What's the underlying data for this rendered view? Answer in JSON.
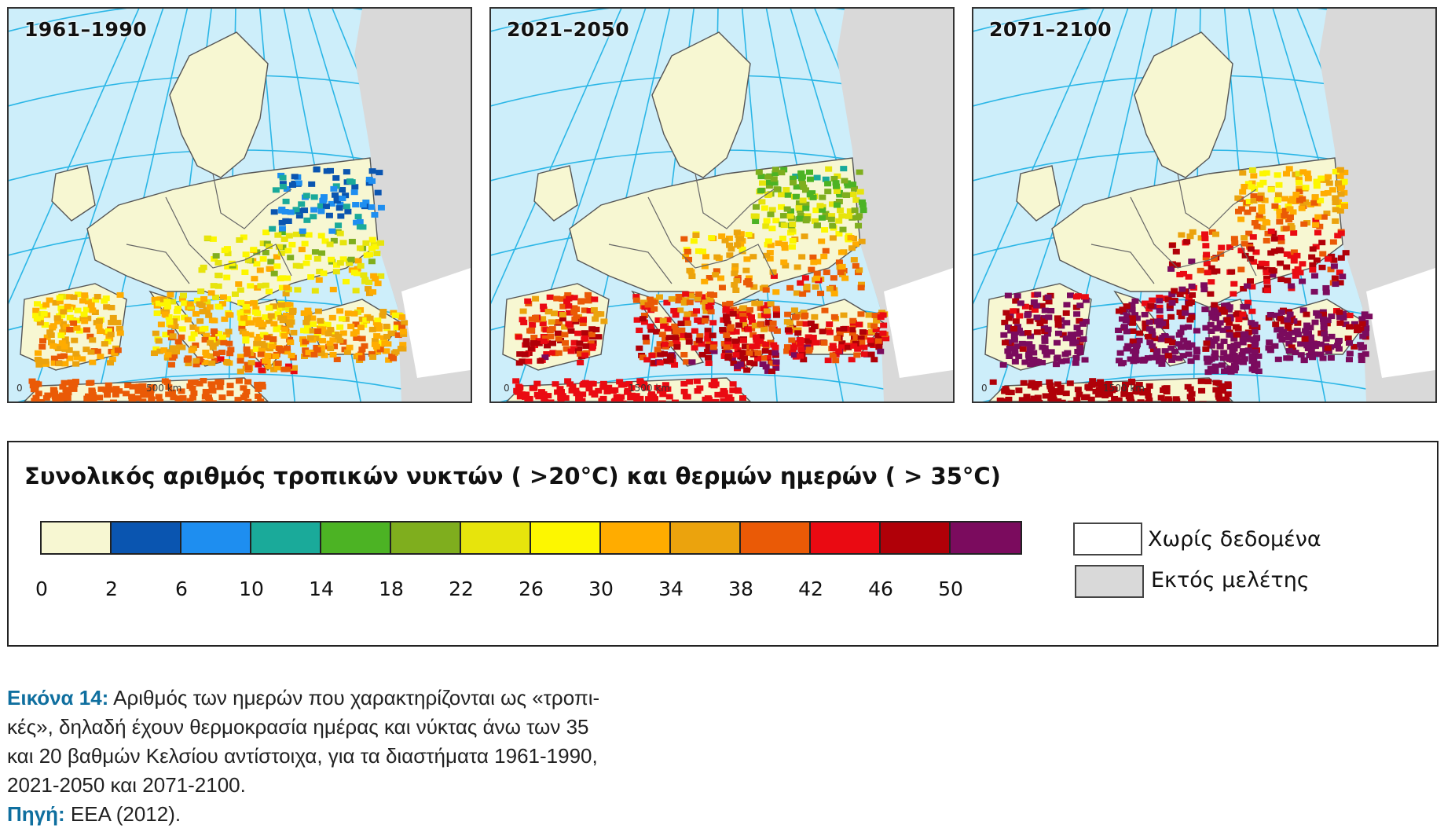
{
  "panels": [
    {
      "title": "1961–1990",
      "scale_start": "0",
      "scale_end": "500 km",
      "level": 1
    },
    {
      "title": "2021–2050",
      "scale_start": "0",
      "scale_end": "1500 km",
      "level": 2
    },
    {
      "title": "2071–2100",
      "scale_start": "0",
      "scale_end": "1500 km",
      "level": 3
    }
  ],
  "legend": {
    "title": "Συνολικός αριθμός τροπικών νυκτών ( >20°C) και θερμών ημερών ( > 35°C)",
    "colors": [
      "#f7f7d2",
      "#0a55b0",
      "#1e8ef0",
      "#1aaa9a",
      "#4cb324",
      "#7fae1e",
      "#e7e40c",
      "#fdf700",
      "#ffac00",
      "#eba30d",
      "#ea5a06",
      "#ea0a12",
      "#b00008",
      "#7b0b5e"
    ],
    "ticks": [
      "0",
      "2",
      "6",
      "10",
      "14",
      "18",
      "22",
      "26",
      "30",
      "34",
      "38",
      "42",
      "46",
      "50"
    ],
    "no_data": {
      "label": "Χωρίς δεδομένα",
      "color": "#ffffff"
    },
    "outside": {
      "label": "Εκτός μελέτης",
      "color": "#d9d9d9"
    }
  },
  "caption": {
    "label": "Εικόνα 14:",
    "lines": [
      "Αριθμός των ημερών που χαρακτηρίζονται ως «τροπι-",
      "κές», δηλαδή έχουν θερμοκρασία ημέρας και νύκτας άνω των 35",
      "και 20 βαθμών Κελσίου αντίστοιχα, για τα διαστήματα 1961-1990,",
      "2021-2050 και 2071-2100."
    ],
    "source_label": "Πηγή:",
    "source_text": "EEA (2012)."
  }
}
